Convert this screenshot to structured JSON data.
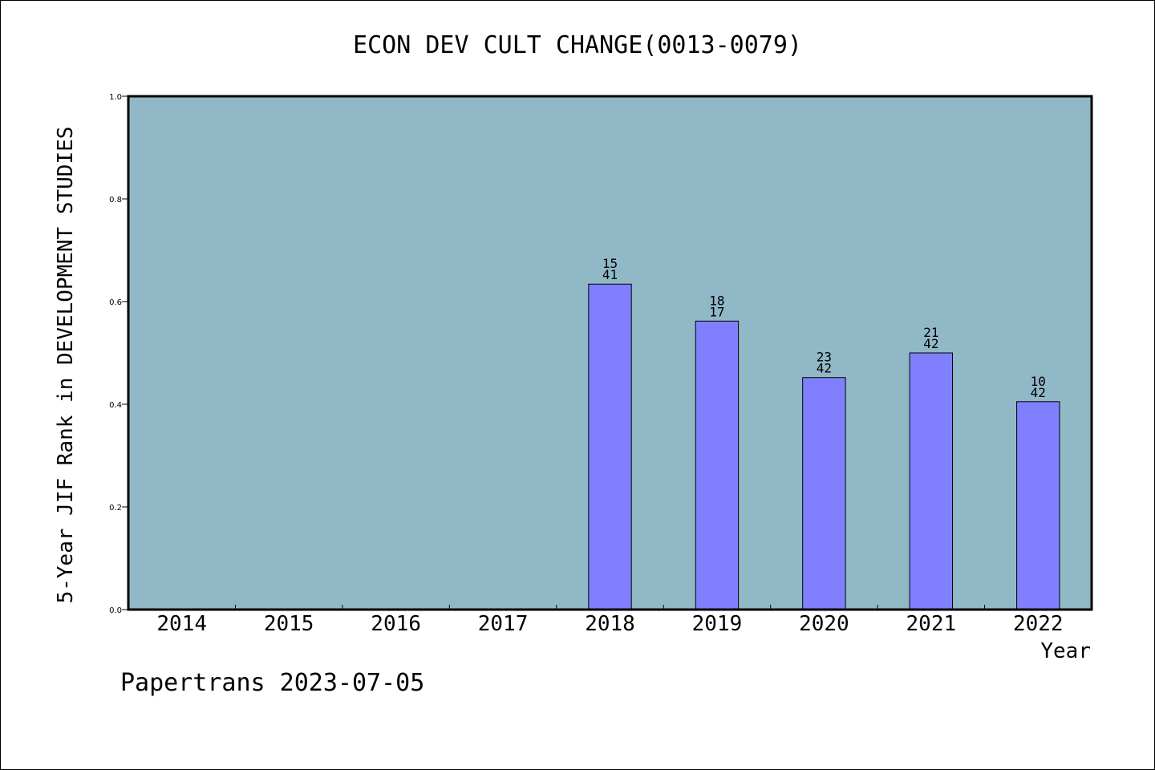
{
  "chart_data": {
    "type": "bar",
    "title": "ECON DEV CULT CHANGE(0013-0079)",
    "xlabel": "Year",
    "ylabel": "5-Year JIF Rank in DEVELOPMENT STUDIES",
    "categories": [
      "2014",
      "2015",
      "2016",
      "2017",
      "2018",
      "2019",
      "2020",
      "2021",
      "2022"
    ],
    "values": [
      null,
      null,
      null,
      null,
      0.634,
      0.562,
      0.452,
      0.5,
      0.405
    ],
    "bar_labels": [
      null,
      null,
      null,
      null,
      {
        "rank": "15",
        "total": "41"
      },
      {
        "rank": "18",
        "total": "17"
      },
      {
        "rank": "23",
        "total": "42"
      },
      {
        "rank": "21",
        "total": "42"
      },
      {
        "rank": "10",
        "total": "42"
      }
    ],
    "ylim": [
      0,
      1.0
    ],
    "yticks": [
      "0.0",
      "0.2",
      "0.4",
      "0.6",
      "0.8",
      "1.0"
    ],
    "grid": false,
    "legend": "none",
    "colors": {
      "plot_background": "#90b8c6",
      "bar_fill": "#8080ff",
      "bar_stroke": "#000000"
    }
  },
  "footer": {
    "text": "Papertrans 2023-07-05"
  }
}
